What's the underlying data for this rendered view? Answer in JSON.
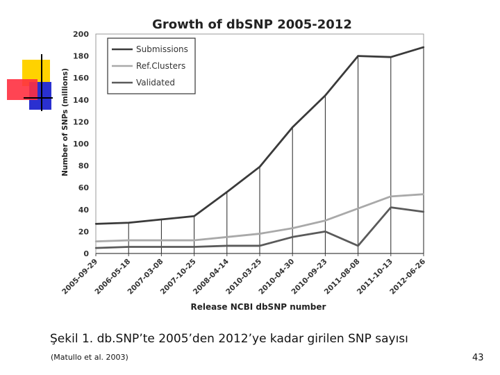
{
  "slide": {
    "caption": "Şekil 1. db.SNP’te 2005’den 2012’ye kadar girilen SNP sayısı",
    "source": "(Matullo et al. 2003)",
    "page_number": "43"
  },
  "colors": {
    "submissions": "#3a3a3a",
    "ref_clusters": "#a9a9a9",
    "validated": "#5a5a5a",
    "deco_yellow": "#ffd200",
    "deco_red": "#ff3040",
    "deco_blue": "#2a30d0"
  },
  "chart_data": {
    "type": "line",
    "title": "Growth of dbSNP 2005-2012",
    "xlabel": "Release NCBI dbSNP number",
    "ylabel": "Number of SNPs (millions)",
    "ylim": [
      0,
      200
    ],
    "yticks": [
      0,
      20,
      40,
      60,
      80,
      100,
      120,
      140,
      160,
      180,
      200
    ],
    "categories": [
      "2005-09-29",
      "2006-05-18",
      "2007-03-08",
      "2007-10-25",
      "2008-04-14",
      "2010-03-25",
      "2010-04-30",
      "2010-09-23",
      "2011-08-08",
      "2011-10-13",
      "2012-06-26"
    ],
    "x_positions": [
      0,
      3,
      6,
      9,
      12,
      15,
      18,
      21,
      24,
      27,
      30
    ],
    "x_range": [
      0,
      30
    ],
    "legend_position": "top-left",
    "series": [
      {
        "name": "Submissions",
        "color_key": "submissions",
        "points": [
          [
            0,
            27
          ],
          [
            3,
            28
          ],
          [
            6,
            31
          ],
          [
            9,
            34
          ],
          [
            12,
            56
          ],
          [
            15,
            79
          ],
          [
            18,
            115
          ],
          [
            21,
            144
          ],
          [
            24,
            180
          ],
          [
            27,
            179
          ],
          [
            30,
            188
          ]
        ]
      },
      {
        "name": "Ref.Clusters",
        "color_key": "ref_clusters",
        "points": [
          [
            0,
            11
          ],
          [
            3,
            12
          ],
          [
            6,
            12
          ],
          [
            9,
            12
          ],
          [
            12,
            15
          ],
          [
            15,
            18
          ],
          [
            18,
            23
          ],
          [
            21,
            30
          ],
          [
            24,
            41
          ],
          [
            27,
            52
          ],
          [
            30,
            54
          ]
        ]
      },
      {
        "name": "Validated",
        "color_key": "validated",
        "points": [
          [
            0,
            5
          ],
          [
            3,
            6
          ],
          [
            6,
            6
          ],
          [
            9,
            6
          ],
          [
            12,
            7
          ],
          [
            15,
            7
          ],
          [
            18,
            15
          ],
          [
            21,
            20
          ],
          [
            24,
            7
          ],
          [
            27,
            42
          ],
          [
            30,
            38
          ]
        ]
      }
    ]
  }
}
